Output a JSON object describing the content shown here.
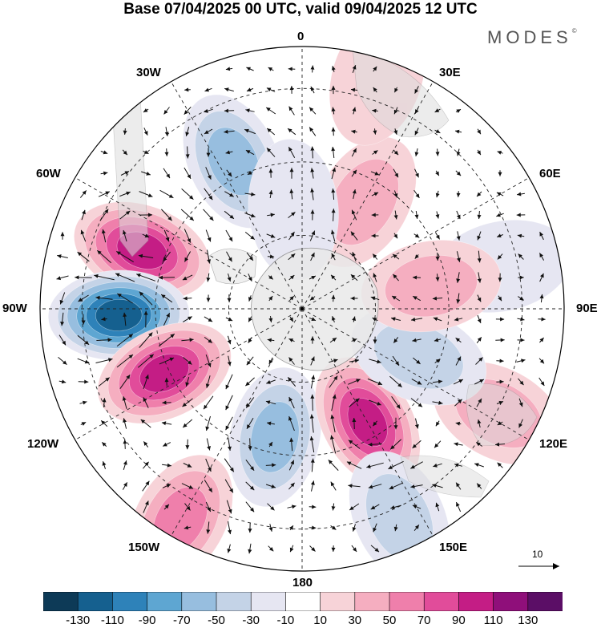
{
  "title": "Base 07/04/2025 00 UTC, valid 09/04/2025 12 UTC",
  "brand": "MODES",
  "brand_mark": "©",
  "longitude_labels": {
    "lon_0": "0",
    "lon_30e": "30E",
    "lon_60e": "60E",
    "lon_90e": "90E",
    "lon_120e": "120E",
    "lon_150e": "150E",
    "lon_180": "180",
    "lon_150w": "150W",
    "lon_120w": "120W",
    "lon_90w": "90W",
    "lon_60w": "60W",
    "lon_30w": "30W"
  },
  "reference_vector": {
    "label": "10"
  },
  "colorbar": {
    "ticks": [
      "-130",
      "-110",
      "-90",
      "-70",
      "-50",
      "-30",
      "-10",
      "10",
      "30",
      "50",
      "70",
      "90",
      "110",
      "130"
    ],
    "colors": [
      "#0d3a57",
      "#15608f",
      "#2e82b9",
      "#5ea6d2",
      "#97bedf",
      "#c4d3e7",
      "#e6e6f2",
      "#ffffff",
      "#f7d3d8",
      "#f5aec0",
      "#ef7fab",
      "#e14c9a",
      "#c41d85",
      "#8f0f7a",
      "#5b0e66"
    ]
  },
  "anomalies": [
    {
      "name": "neg-30w",
      "lon": -25,
      "lat_r": 0.62,
      "level": -60
    },
    {
      "name": "pos-60w",
      "lon": -70,
      "lat_r": 0.65,
      "level": 115
    },
    {
      "name": "neg-90w",
      "lon": -92,
      "lat_r": 0.7,
      "level": -130
    },
    {
      "name": "pos-110w",
      "lon": -115,
      "lat_r": 0.58,
      "level": 100
    },
    {
      "name": "neg-165w",
      "lon": -168,
      "lat_r": 0.5,
      "level": -70
    },
    {
      "name": "pos-150w",
      "lon": -150,
      "lat_r": 0.93,
      "level": 75
    },
    {
      "name": "pos-150e",
      "lon": 150,
      "lat_r": 0.5,
      "level": 100
    },
    {
      "name": "neg-155e",
      "lon": 155,
      "lat_r": 0.88,
      "level": -50
    },
    {
      "name": "pos-120e",
      "lon": 118,
      "lat_r": 0.85,
      "level": 40
    },
    {
      "name": "pos-30e",
      "lon": 30,
      "lat_r": 0.47,
      "level": 45
    },
    {
      "name": "pos-20e",
      "lon": 18,
      "lat_r": 0.93,
      "level": 25
    },
    {
      "name": "neg-75e",
      "lon": 78,
      "lat_r": 0.78,
      "level": -35
    },
    {
      "name": "neg-110e",
      "lon": 112,
      "lat_r": 0.48,
      "level": -40
    },
    {
      "name": "pos-80e",
      "lon": 80,
      "lat_r": 0.5,
      "level": 45
    },
    {
      "name": "neg-10w",
      "lon": -5,
      "lat_r": 0.38,
      "level": -35
    }
  ]
}
